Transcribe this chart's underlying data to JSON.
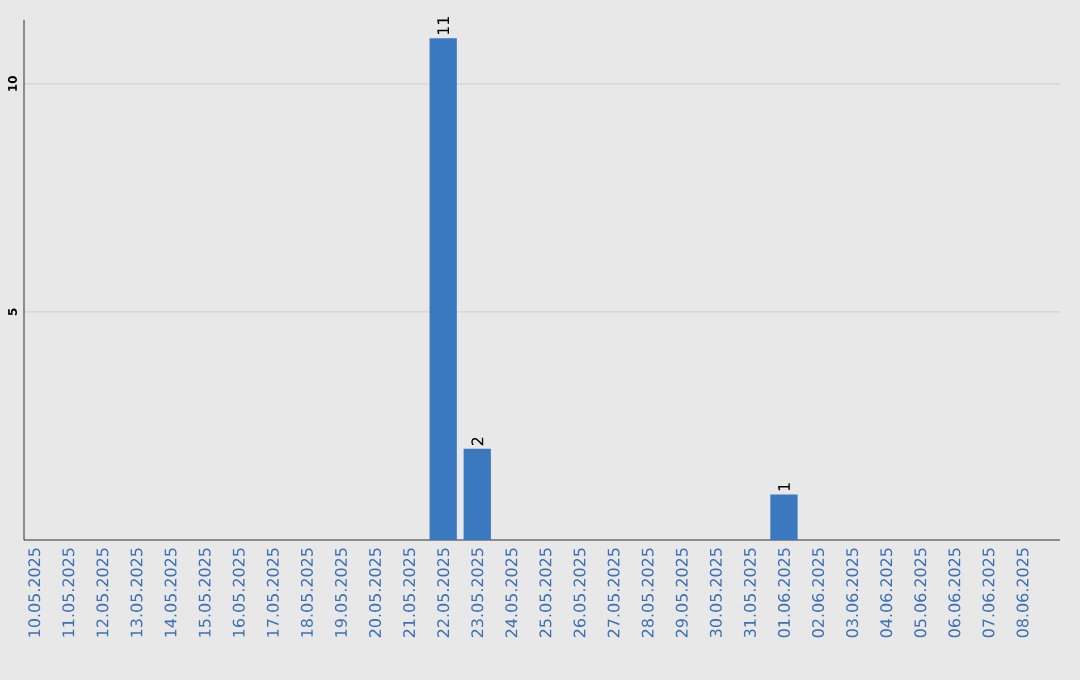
{
  "chart_data": {
    "type": "bar",
    "categories": [
      "10.05.2025",
      "11.05.2025",
      "12.05.2025",
      "13.05.2025",
      "14.05.2025",
      "15.05.2025",
      "16.05.2025",
      "17.05.2025",
      "18.05.2025",
      "19.05.2025",
      "20.05.2025",
      "21.05.2025",
      "22.05.2025",
      "23.05.2025",
      "24.05.2025",
      "25.05.2025",
      "26.05.2025",
      "27.05.2025",
      "28.05.2025",
      "29.05.2025",
      "30.05.2025",
      "31.05.2025",
      "01.06.2025",
      "02.06.2025",
      "03.06.2025",
      "04.06.2025",
      "05.06.2025",
      "06.06.2025",
      "07.06.2025",
      "08.06.2025"
    ],
    "values": [
      0,
      0,
      0,
      0,
      0,
      0,
      0,
      0,
      0,
      0,
      0,
      0,
      11,
      2,
      0,
      0,
      0,
      0,
      0,
      0,
      0,
      0,
      1,
      0,
      0,
      0,
      0,
      0,
      0,
      0
    ],
    "value_labels": [
      null,
      null,
      null,
      null,
      null,
      null,
      null,
      null,
      null,
      null,
      null,
      null,
      "11",
      "2",
      null,
      null,
      null,
      null,
      null,
      null,
      null,
      null,
      "1",
      null,
      null,
      null,
      null,
      null,
      null,
      null
    ],
    "color": "#3a78c0",
    "ylim": [
      0,
      11.4
    ],
    "yticks": [
      5,
      10
    ],
    "grid": "y"
  }
}
